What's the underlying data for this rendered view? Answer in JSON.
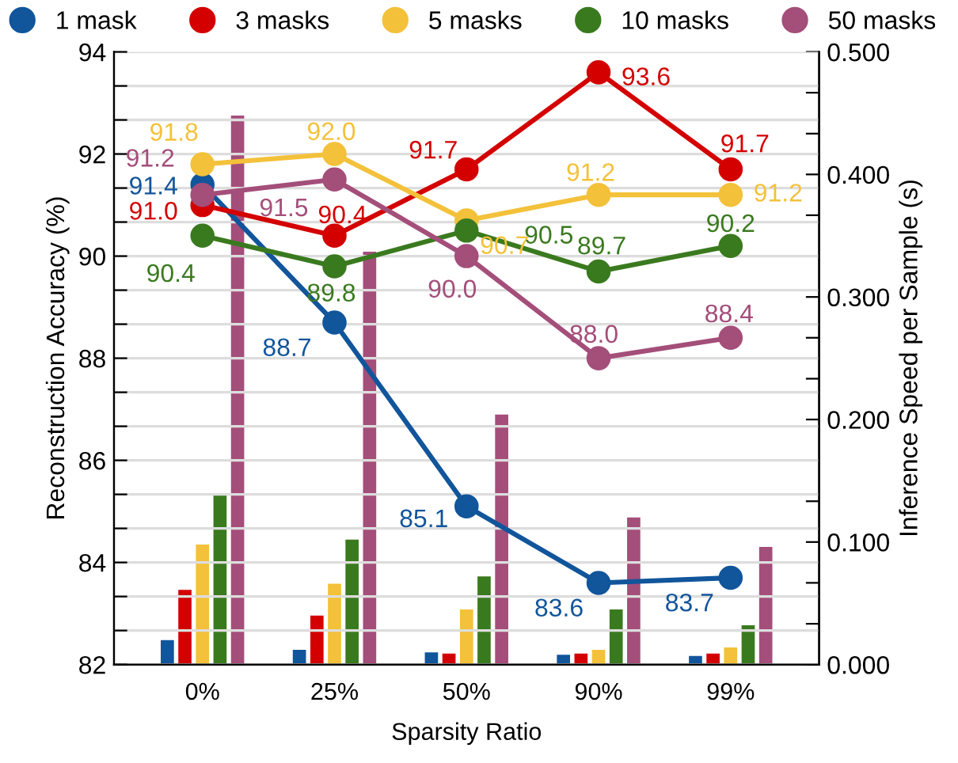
{
  "chart_data": {
    "type": "line",
    "xlabel": "Sparsity Ratio",
    "ylabel": "Reconstruction Accuracy (%)",
    "y2label": "Inference Speed per Sample (s)",
    "categories": [
      "0%",
      "25%",
      "50%",
      "90%",
      "99%"
    ],
    "series": [
      {
        "name": "1 mask",
        "color": "#11559b",
        "values": [
          91.4,
          88.7,
          85.1,
          83.6,
          83.7
        ],
        "value_labels": [
          "91.4",
          "88.7",
          "85.1",
          "83.6",
          "83.7"
        ]
      },
      {
        "name": "3 masks",
        "color": "#d40000",
        "values": [
          91.0,
          90.4,
          91.7,
          93.6,
          91.7
        ],
        "value_labels": [
          "91.0",
          "90.4",
          "91.7",
          "93.6",
          "91.7"
        ]
      },
      {
        "name": "5 masks",
        "color": "#f3c13a",
        "values": [
          91.8,
          92.0,
          90.7,
          91.2,
          91.2
        ],
        "value_labels": [
          "91.8",
          "92.0",
          "90.7",
          "91.2",
          "91.2"
        ]
      },
      {
        "name": "10 masks",
        "color": "#3a7a1f",
        "values": [
          90.4,
          89.8,
          90.5,
          89.7,
          90.2
        ],
        "value_labels": [
          "90.4",
          "89.8",
          "90.5",
          "89.7",
          "90.2"
        ]
      },
      {
        "name": "50 masks",
        "color": "#a44e7a",
        "values": [
          91.2,
          91.5,
          90.0,
          88.0,
          88.4
        ],
        "value_labels": [
          "91.2",
          "91.5",
          "90.0",
          "88.0",
          "88.4"
        ]
      },
      {
        "type": "bar",
        "axis": "y2",
        "color": "#11559b",
        "values": [
          0.02,
          0.012,
          0.01,
          0.008,
          0.007
        ]
      },
      {
        "type": "bar",
        "axis": "y2",
        "color": "#d40000",
        "values": [
          0.061,
          0.04,
          0.009,
          0.009,
          0.009
        ]
      },
      {
        "type": "bar",
        "axis": "y2",
        "color": "#f3c13a",
        "values": [
          0.098,
          0.066,
          0.045,
          0.012,
          0.014
        ]
      },
      {
        "type": "bar",
        "axis": "y2",
        "color": "#3a7a1f",
        "values": [
          0.14,
          0.102,
          0.072,
          0.045,
          0.032
        ]
      },
      {
        "type": "bar",
        "axis": "y2",
        "color": "#a44e7a",
        "values": [
          0.448,
          0.337,
          0.204,
          0.12,
          0.096
        ]
      }
    ],
    "ylim": [
      82,
      94
    ],
    "yticks": [
      82,
      {
        "value": 82.667,
        "label": null
      },
      {
        "value": 83.333,
        "label": null
      },
      84,
      {
        "value": 84.667,
        "label": null
      },
      {
        "value": 85.333,
        "label": null
      },
      86,
      {
        "value": 86.667,
        "label": null
      },
      {
        "value": 87.333,
        "label": null
      },
      88,
      {
        "value": 88.667,
        "label": null
      },
      {
        "value": 89.333,
        "label": null
      },
      90,
      {
        "value": 90.667,
        "label": null
      },
      {
        "value": 91.333,
        "label": null
      },
      92,
      {
        "value": 92.667,
        "label": null
      },
      {
        "value": 93.333,
        "label": null
      },
      94
    ],
    "y2lim": [
      0,
      0.5
    ],
    "y2ticks": [
      {
        "value": 0,
        "label": "0.000"
      },
      {
        "value": 0.0333,
        "label": null
      },
      {
        "value": 0.0667,
        "label": null
      },
      {
        "value": 0.1,
        "label": "0.100"
      },
      {
        "value": 0.1333,
        "label": null
      },
      {
        "value": 0.1667,
        "label": null
      },
      {
        "value": 0.2,
        "label": "0.200"
      },
      {
        "value": 0.2333,
        "label": null
      },
      {
        "value": 0.2667,
        "label": null
      },
      {
        "value": 0.3,
        "label": "0.300"
      },
      {
        "value": 0.3333,
        "label": null
      },
      {
        "value": 0.3667,
        "label": null
      },
      {
        "value": 0.4,
        "label": "0.400"
      },
      {
        "value": 0.4333,
        "label": null
      },
      {
        "value": 0.4667,
        "label": null
      },
      {
        "value": 0.5,
        "label": "0.500"
      }
    ],
    "grid": "y",
    "legend": "top",
    "marker": "circle",
    "line_style": "solid"
  }
}
